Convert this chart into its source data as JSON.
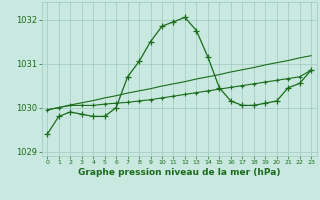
{
  "hours": [
    0,
    1,
    2,
    3,
    4,
    5,
    6,
    7,
    8,
    9,
    10,
    11,
    12,
    13,
    14,
    15,
    16,
    17,
    18,
    19,
    20,
    21,
    22,
    23
  ],
  "pressure_main": [
    1029.4,
    1029.8,
    1029.9,
    1029.85,
    1029.8,
    1029.8,
    1030.0,
    1030.7,
    1031.05,
    1031.5,
    1031.85,
    1031.95,
    1032.05,
    1031.75,
    1031.15,
    1030.45,
    1030.15,
    1030.05,
    1030.05,
    1030.1,
    1030.15,
    1030.45,
    1030.55,
    1030.85
  ],
  "pressure_trend_straight": [
    1029.95,
    1030.0,
    1030.06,
    1030.11,
    1030.16,
    1030.22,
    1030.27,
    1030.33,
    1030.38,
    1030.43,
    1030.49,
    1030.54,
    1030.59,
    1030.65,
    1030.7,
    1030.75,
    1030.81,
    1030.86,
    1030.91,
    1030.97,
    1031.02,
    1031.07,
    1031.13,
    1031.18
  ],
  "pressure_secondary": [
    1029.95,
    1030.0,
    1030.05,
    1030.05,
    1030.05,
    1030.08,
    1030.1,
    1030.12,
    1030.15,
    1030.18,
    1030.22,
    1030.26,
    1030.3,
    1030.34,
    1030.38,
    1030.42,
    1030.46,
    1030.5,
    1030.54,
    1030.58,
    1030.62,
    1030.66,
    1030.7,
    1030.85
  ],
  "line_color": "#1a6b1a",
  "background_color": "#c8e8e0",
  "grid_color": "#a0c8c0",
  "text_color": "#1a6b1a",
  "xlabel": "Graphe pression niveau de la mer (hPa)",
  "ylim": [
    1028.9,
    1032.4
  ],
  "yticks": [
    1029,
    1030,
    1031,
    1032
  ],
  "xlim": [
    -0.5,
    23.5
  ],
  "xticks": [
    0,
    1,
    2,
    3,
    4,
    5,
    6,
    7,
    8,
    9,
    10,
    11,
    12,
    13,
    14,
    15,
    16,
    17,
    18,
    19,
    20,
    21,
    22,
    23
  ]
}
